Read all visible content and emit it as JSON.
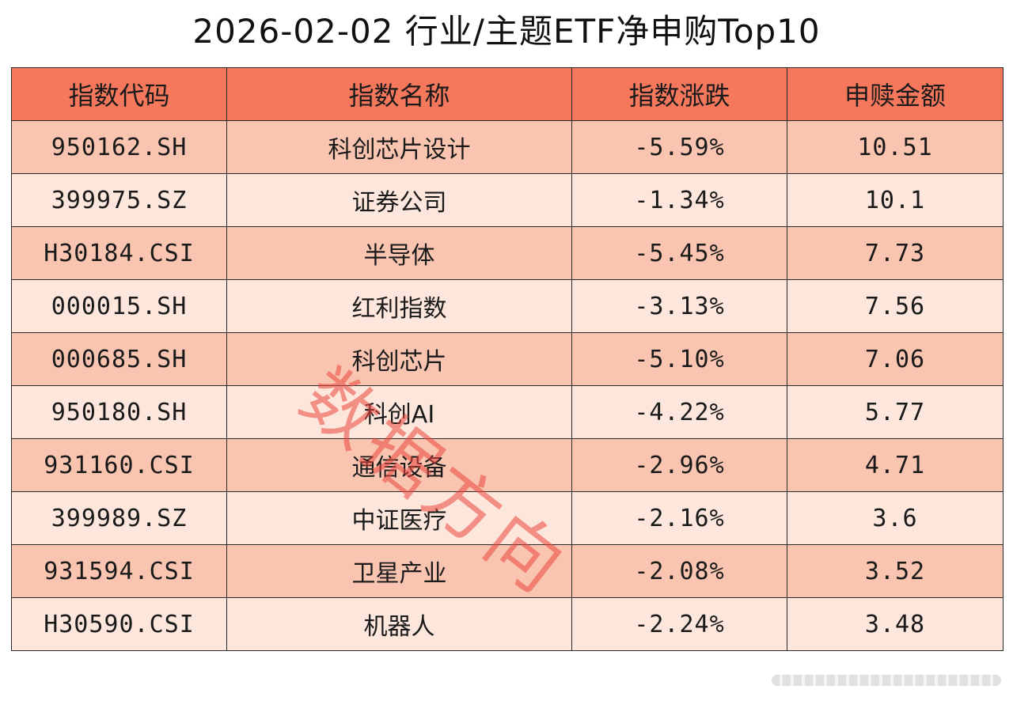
{
  "title": "2026-02-02 行业/主题ETF净申购Top10",
  "table": {
    "headers": [
      "指数代码",
      "指数名称",
      "指数涨跌",
      "申赎金额"
    ],
    "rows": [
      {
        "code": "950162.SH",
        "name": "科创芯片设计",
        "change": "-5.59%",
        "amount": "10.51"
      },
      {
        "code": "399975.SZ",
        "name": "证券公司",
        "change": "-1.34%",
        "amount": "10.1"
      },
      {
        "code": "H30184.CSI",
        "name": "半导体",
        "change": "-5.45%",
        "amount": "7.73"
      },
      {
        "code": "000015.SH",
        "name": "红利指数",
        "change": "-3.13%",
        "amount": "7.56"
      },
      {
        "code": "000685.SH",
        "name": "科创芯片",
        "change": "-5.10%",
        "amount": "7.06"
      },
      {
        "code": "950180.SH",
        "name": "科创AI",
        "change": "-4.22%",
        "amount": "5.77"
      },
      {
        "code": "931160.CSI",
        "name": "通信设备",
        "change": "-2.96%",
        "amount": "4.71"
      },
      {
        "code": "399989.SZ",
        "name": "中证医疗",
        "change": "-2.16%",
        "amount": "3.6"
      },
      {
        "code": "931594.CSI",
        "name": "卫星产业",
        "change": "-2.08%",
        "amount": "3.52"
      },
      {
        "code": "H30590.CSI",
        "name": "机器人",
        "change": "-2.24%",
        "amount": "3.48"
      }
    ]
  },
  "watermark": "数据方向",
  "colors": {
    "header_bg": "#f6785c",
    "row_odd_bg": "#f9c5b1",
    "row_even_bg": "#fde6dc",
    "watermark": "#eb463c"
  }
}
